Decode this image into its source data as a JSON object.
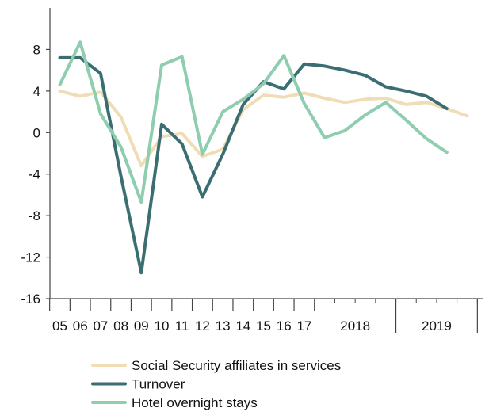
{
  "chart_data": {
    "type": "line",
    "title": "",
    "xlabel": "",
    "ylabel": "",
    "ylim": [
      -16,
      12
    ],
    "yticks": [
      -16,
      -12,
      -8,
      -4,
      0,
      4,
      8
    ],
    "ytick_labels": [
      "-16",
      "-12",
      "-8",
      "-4",
      "0",
      "4",
      "8"
    ],
    "grid": false,
    "legend_position": "bottom",
    "x_categories": [
      "05",
      "06",
      "07",
      "08",
      "09",
      "10",
      "11",
      "12",
      "13",
      "14",
      "15",
      "16",
      "17",
      "2018 Q1",
      "2018 Q2",
      "2018 Q3",
      "2018 Q4",
      "2019 Q1",
      "2019 Q2",
      "2019 Q3",
      "2019 Q4"
    ],
    "year_labels": [
      "05",
      "06",
      "07",
      "08",
      "09",
      "10",
      "11",
      "12",
      "13",
      "14",
      "15",
      "16",
      "17"
    ],
    "group_labels": [
      "2018",
      "2019"
    ],
    "series": [
      {
        "name": "Social Security affiliates in services",
        "color": "#F0DDB5",
        "values": [
          4.0,
          3.5,
          3.9,
          1.5,
          -3.2,
          -0.4,
          -0.1,
          -2.3,
          -1.6,
          2.2,
          3.6,
          3.4,
          3.8,
          3.3,
          2.9,
          3.2,
          3.3,
          2.7,
          2.9,
          2.3,
          1.6
        ]
      },
      {
        "name": "Turnover",
        "color": "#3B6E72",
        "values": [
          7.2,
          7.2,
          5.7,
          -4.2,
          -13.5,
          0.8,
          -1.1,
          -6.2,
          -2.1,
          2.7,
          4.9,
          4.2,
          6.6,
          6.4,
          6.0,
          5.5,
          4.4,
          4.0,
          3.5,
          2.3,
          null
        ]
      },
      {
        "name": "Hotel overnight stays",
        "color": "#8FCDB0",
        "values": [
          4.6,
          8.7,
          1.8,
          -1.4,
          -6.7,
          6.5,
          7.3,
          -2.1,
          2.0,
          3.2,
          4.7,
          7.4,
          2.8,
          -0.5,
          0.2,
          1.7,
          2.9,
          1.2,
          -0.6,
          -1.9,
          null
        ]
      }
    ]
  }
}
